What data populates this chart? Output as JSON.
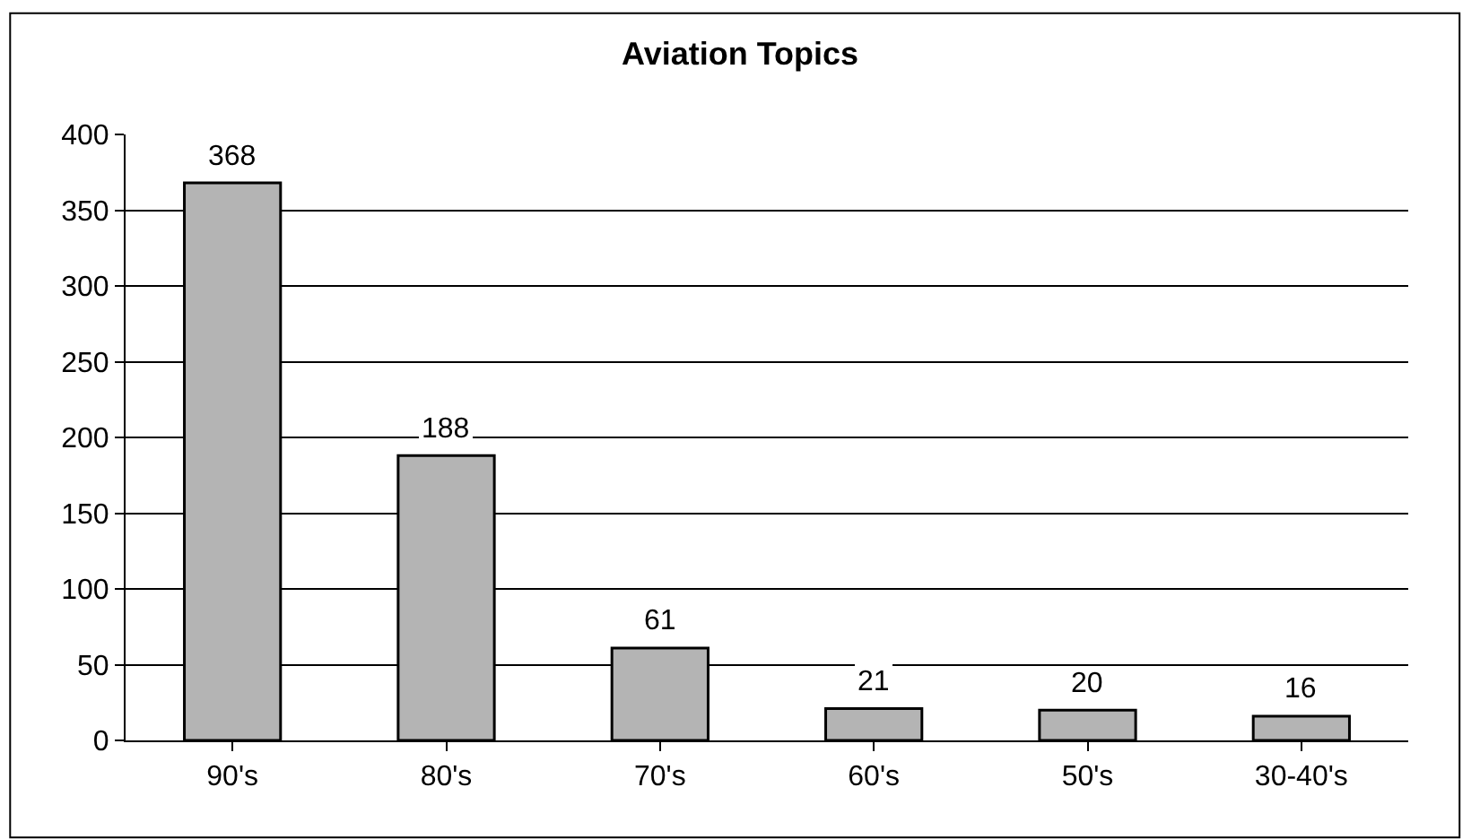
{
  "chart_data": {
    "type": "bar",
    "title": "Aviation Topics",
    "categories": [
      "90's",
      "80's",
      "70's",
      "60's",
      "50's",
      "30-40's"
    ],
    "values": [
      368,
      188,
      61,
      21,
      20,
      16
    ],
    "color": "#b4b4b4",
    "ylim": [
      0,
      400
    ],
    "yticks": [
      0,
      50,
      100,
      150,
      200,
      250,
      300,
      350,
      400
    ],
    "grid": "y",
    "data_labels": true,
    "legend": false
  }
}
